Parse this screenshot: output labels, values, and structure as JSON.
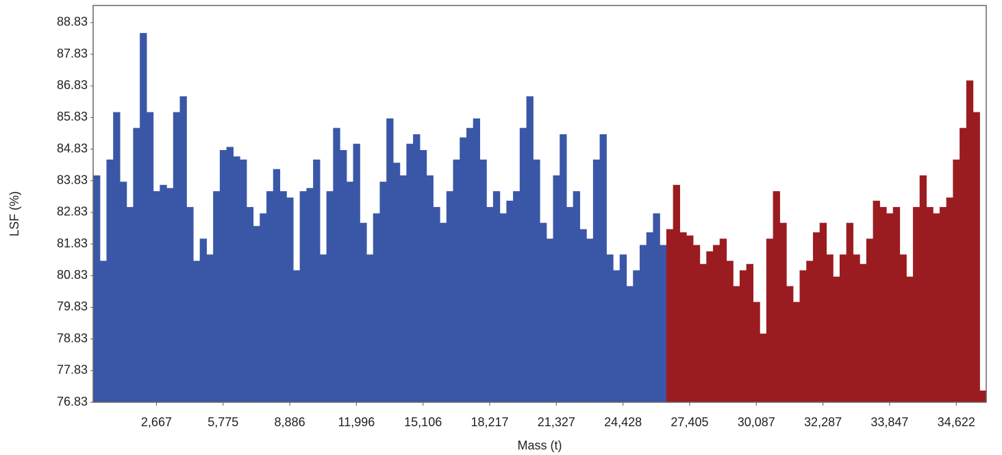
{
  "chart_data": {
    "type": "bar",
    "x_label": "Mass (t)",
    "y_label": "LSF (%)",
    "categories": [
      null,
      null,
      null,
      null,
      null,
      null,
      null,
      null,
      null,
      "2,667",
      null,
      null,
      null,
      null,
      null,
      null,
      null,
      null,
      null,
      "5,775",
      null,
      null,
      null,
      null,
      null,
      null,
      null,
      null,
      null,
      "8,886",
      null,
      null,
      null,
      null,
      null,
      null,
      null,
      null,
      null,
      "11,996",
      null,
      null,
      null,
      null,
      null,
      null,
      null,
      null,
      null,
      "15,106",
      null,
      null,
      null,
      null,
      null,
      null,
      null,
      null,
      null,
      "18,217",
      null,
      null,
      null,
      null,
      null,
      null,
      null,
      null,
      null,
      "21,327",
      null,
      null,
      null,
      null,
      null,
      null,
      null,
      null,
      null,
      "24,428",
      null,
      null,
      null,
      null,
      null,
      null,
      null,
      null,
      null,
      "27,405",
      null,
      null,
      null,
      null,
      null,
      null,
      null,
      null,
      null,
      "30,087",
      null,
      null,
      null,
      null,
      null,
      null,
      null,
      null,
      null,
      "32,287",
      null,
      null,
      null,
      null,
      null,
      null,
      null,
      null,
      null,
      "33,847",
      null,
      null,
      null,
      null,
      null,
      null,
      null,
      null,
      null,
      "34,622",
      null,
      null,
      null,
      null
    ],
    "series": [
      {
        "color": "#3a57a7",
        "values": [
          84.0,
          81.3,
          84.5,
          86.0,
          83.8,
          83.0,
          85.5,
          88.5,
          86.0,
          83.5,
          83.7,
          83.6,
          86.0,
          86.5,
          83.0,
          81.3,
          82.0,
          81.5,
          83.5,
          84.8,
          84.9,
          84.6,
          84.5,
          83.0,
          82.4,
          82.8,
          83.5,
          84.2,
          83.5,
          83.3,
          81.0,
          83.5,
          83.6,
          84.5,
          81.5,
          83.5,
          85.5,
          84.8,
          83.8,
          85.0,
          82.5,
          81.5,
          82.8,
          83.8,
          85.8,
          84.4,
          84.0,
          85.0,
          85.3,
          84.8,
          84.0,
          83.0,
          82.5,
          83.5,
          84.5,
          85.2,
          85.5,
          85.8,
          84.5,
          83.0,
          83.5,
          82.8,
          83.2,
          83.5,
          85.5,
          86.5,
          84.5,
          82.5,
          82.0,
          84.0,
          85.3,
          83.0,
          83.5,
          82.3,
          82.0,
          84.5,
          85.3,
          81.5,
          81.0,
          81.5,
          80.5,
          81.0,
          81.8,
          82.2,
          82.8,
          81.8,
          null,
          null,
          null,
          null,
          null,
          null,
          null,
          null,
          null,
          null,
          null,
          null,
          null,
          null,
          null,
          null,
          null,
          null,
          null,
          null,
          null,
          null,
          null,
          null,
          null,
          null,
          null,
          null,
          null,
          null,
          null,
          null,
          null,
          null,
          null,
          null,
          null,
          null,
          null,
          null,
          null,
          null,
          null,
          null,
          null,
          null,
          null,
          null
        ]
      },
      {
        "color": "#9b1c20",
        "values": [
          null,
          null,
          null,
          null,
          null,
          null,
          null,
          null,
          null,
          null,
          null,
          null,
          null,
          null,
          null,
          null,
          null,
          null,
          null,
          null,
          null,
          null,
          null,
          null,
          null,
          null,
          null,
          null,
          null,
          null,
          null,
          null,
          null,
          null,
          null,
          null,
          null,
          null,
          null,
          null,
          null,
          null,
          null,
          null,
          null,
          null,
          null,
          null,
          null,
          null,
          null,
          null,
          null,
          null,
          null,
          null,
          null,
          null,
          null,
          null,
          null,
          null,
          null,
          null,
          null,
          null,
          null,
          null,
          null,
          null,
          null,
          null,
          null,
          null,
          null,
          null,
          null,
          null,
          null,
          null,
          null,
          null,
          null,
          null,
          null,
          null,
          82.3,
          83.7,
          82.2,
          82.1,
          81.8,
          81.2,
          81.6,
          81.8,
          82.0,
          81.3,
          80.5,
          81.0,
          81.2,
          80.0,
          79.0,
          82.0,
          83.5,
          82.5,
          80.5,
          80.0,
          81.0,
          81.3,
          82.2,
          82.5,
          81.5,
          80.8,
          81.5,
          82.5,
          81.5,
          81.2,
          82.0,
          83.2,
          83.0,
          82.8,
          83.0,
          81.5,
          80.8,
          83.0,
          84.0,
          83.0,
          82.8,
          83.0,
          83.3,
          84.5,
          85.5,
          87.0,
          86.0,
          77.2
        ]
      }
    ],
    "ylim": [
      76.83,
      89.37
    ],
    "yticks": [
      76.83,
      77.83,
      78.83,
      79.83,
      80.83,
      81.83,
      82.83,
      83.83,
      84.83,
      85.83,
      86.83,
      87.83,
      88.83
    ]
  }
}
